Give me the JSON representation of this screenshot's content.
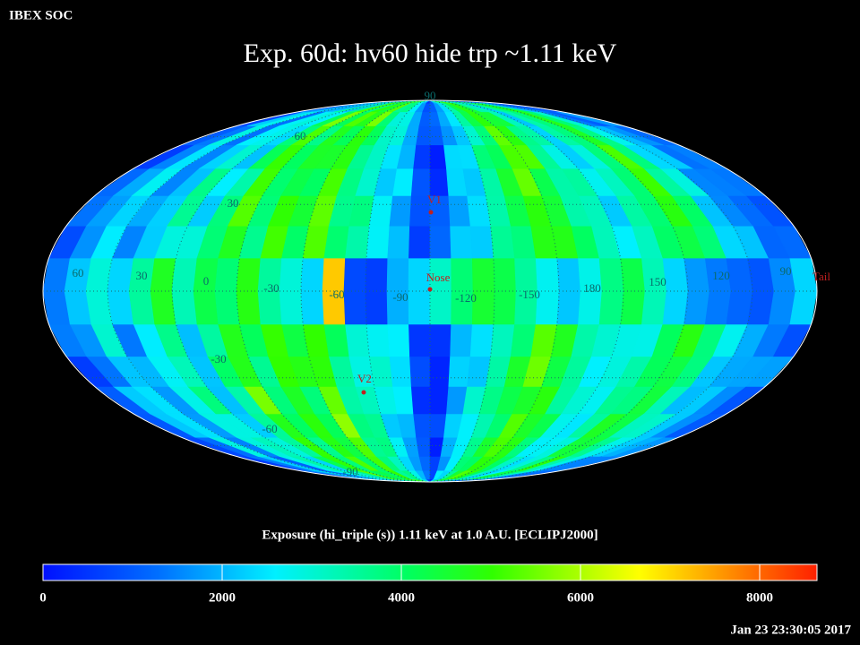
{
  "header": {
    "org": "IBEX SOC",
    "title": "Exp.   60d: hv60 hide trp ~1.11 keV",
    "timestamp": "Jan 23 23:30:05 2017"
  },
  "map": {
    "grid_labels": [
      "90",
      "60",
      "30",
      "60",
      "30",
      "0",
      "-30",
      "-60",
      "-90",
      "-120",
      "-150",
      "180",
      "150",
      "120",
      "90",
      "-30",
      "-60",
      "-90"
    ],
    "markers": [
      "V1",
      "Nose",
      "V2",
      "Tail"
    ]
  },
  "colorbar": {
    "title": "Exposure (hi_triple (s))  1.11 keV at 1.0 A.U. [ECLIPJ2000]",
    "range": [
      0,
      8640
    ],
    "ticks": [
      0,
      2000,
      4000,
      6000,
      8000
    ]
  }
}
